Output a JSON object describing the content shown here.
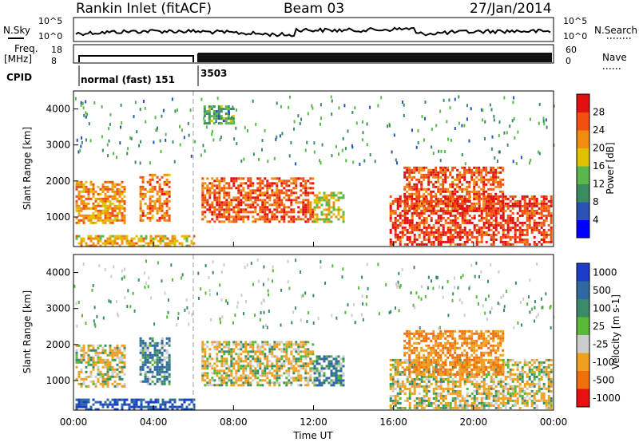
{
  "header": {
    "station": "Rankin Inlet (fitACF)",
    "beam": "Beam 03",
    "date": "27/Jan/2014"
  },
  "top_panels": {
    "nsky_label": "N.Sky",
    "nsky_ticks": [
      "10^5",
      "10^0"
    ],
    "nsearch_label": "N.Search",
    "nsearch_ticks": [
      "10^5",
      "10^0"
    ],
    "freq_label": "Freq.",
    "freq_unit": "[MHz]",
    "freq_ticks": [
      "18",
      "8"
    ],
    "nave_label": "Nave",
    "nave_ticks": [
      "60",
      "0"
    ],
    "cpid_label": "CPID",
    "cpid_modes": [
      {
        "label": "normal (fast) 151"
      },
      {
        "label": "3503"
      }
    ]
  },
  "colors": {
    "power": [
      "#0000ff",
      "#2a52b4",
      "#3a8c60",
      "#58b94a",
      "#e0c000",
      "#f08c10",
      "#f05010",
      "#e01010"
    ],
    "velocity": [
      "#1a3cc8",
      "#2e6aa0",
      "#3a8a6a",
      "#59b836",
      "#cccccc",
      "#f0a020",
      "#f07010",
      "#e81010"
    ]
  },
  "chart_data": [
    {
      "type": "heatmap",
      "title": "Power",
      "ylabel": "Slant Range [km]",
      "xlabel": "",
      "ylim": [
        180,
        4500
      ],
      "xlim": [
        0,
        24
      ],
      "yticks": [
        1000,
        2000,
        3000,
        4000
      ],
      "colorbar": {
        "label": "Power [dB]",
        "ticks": [
          4,
          8,
          12,
          16,
          20,
          24,
          28
        ],
        "range": [
          0,
          32
        ]
      },
      "echo_regions": [
        {
          "x": [
            0.1,
            2.6
          ],
          "y": [
            850,
            2000
          ],
          "value": 22
        },
        {
          "x": [
            3.3,
            4.8
          ],
          "y": [
            900,
            2200
          ],
          "value": 24
        },
        {
          "x": [
            6.4,
            12.0
          ],
          "y": [
            850,
            2100
          ],
          "value": 26
        },
        {
          "x": [
            12.0,
            13.5
          ],
          "y": [
            900,
            1700
          ],
          "value": 18
        },
        {
          "x": [
            15.8,
            23.9
          ],
          "y": [
            250,
            1600
          ],
          "value": 28
        },
        {
          "x": [
            16.5,
            21.5
          ],
          "y": [
            1200,
            2400
          ],
          "value": 26
        },
        {
          "x": [
            0.1,
            6.0
          ],
          "y": [
            200,
            500
          ],
          "value": 20
        },
        {
          "x": [
            6.5,
            8.0
          ],
          "y": [
            3600,
            4100
          ],
          "value": 12
        }
      ]
    },
    {
      "type": "heatmap",
      "title": "Velocity",
      "ylabel": "Slant Range [km]",
      "xlabel": "Time UT",
      "ylim": [
        180,
        4500
      ],
      "xlim": [
        0,
        24
      ],
      "yticks": [
        1000,
        2000,
        3000,
        4000
      ],
      "xticks": [
        "00:00",
        "04:00",
        "08:00",
        "12:00",
        "16:00",
        "20:00",
        "00:00"
      ],
      "colorbar": {
        "label": "Velocity [m s-1]",
        "ticks": [
          1000,
          500,
          100,
          25,
          -25,
          -100,
          -500,
          -1000
        ]
      },
      "echo_regions": [
        {
          "x": [
            0.1,
            2.6
          ],
          "y": [
            850,
            2000
          ],
          "value": -100
        },
        {
          "x": [
            3.3,
            4.8
          ],
          "y": [
            900,
            2200
          ],
          "value": 100
        },
        {
          "x": [
            6.4,
            12.0
          ],
          "y": [
            850,
            2100
          ],
          "value": -100
        },
        {
          "x": [
            12.0,
            13.5
          ],
          "y": [
            900,
            1700
          ],
          "value": 100
        },
        {
          "x": [
            15.8,
            23.9
          ],
          "y": [
            250,
            1600
          ],
          "value": -100
        },
        {
          "x": [
            16.5,
            21.5
          ],
          "y": [
            1200,
            2400
          ],
          "value": -500
        },
        {
          "x": [
            0.1,
            6.0
          ],
          "y": [
            200,
            500
          ],
          "value": 500
        }
      ]
    }
  ]
}
